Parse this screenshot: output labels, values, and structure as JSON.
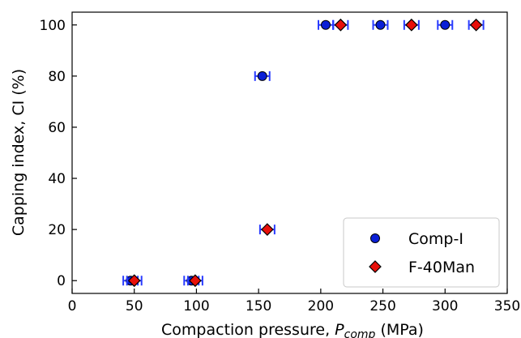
{
  "chart_data": {
    "type": "scatter",
    "xlabel": {
      "main": "Compaction pressure, ",
      "symbol": "P",
      "subscript": "comp",
      "unit": " (MPa)"
    },
    "ylabel": "Capping index, CI (%)",
    "xlim": [
      0,
      350
    ],
    "ylim": [
      -5,
      105
    ],
    "xticks": [
      "0",
      "50",
      "100",
      "150",
      "200",
      "250",
      "300",
      "350"
    ],
    "yticks": [
      "0",
      "20",
      "40",
      "60",
      "80",
      "100"
    ],
    "grid": false,
    "legend_position": "bottom-right",
    "series": [
      {
        "name": "Comp-I",
        "marker": "circle",
        "color": "#0a1fd6",
        "error_color": "#2a3cff",
        "points": [
          {
            "x": 47,
            "y": 0
          },
          {
            "x": 96,
            "y": 0
          },
          {
            "x": 153,
            "y": 80
          },
          {
            "x": 204,
            "y": 100
          },
          {
            "x": 248,
            "y": 100
          },
          {
            "x": 300,
            "y": 100
          }
        ]
      },
      {
        "name": "F-40Man",
        "marker": "diamond",
        "color": "#e8100a",
        "error_color": "#2a3cff",
        "points": [
          {
            "x": 50,
            "y": 0
          },
          {
            "x": 99,
            "y": 0
          },
          {
            "x": 157,
            "y": 20
          },
          {
            "x": 216,
            "y": 100
          },
          {
            "x": 273,
            "y": 100
          },
          {
            "x": 325,
            "y": 100
          }
        ]
      }
    ]
  }
}
